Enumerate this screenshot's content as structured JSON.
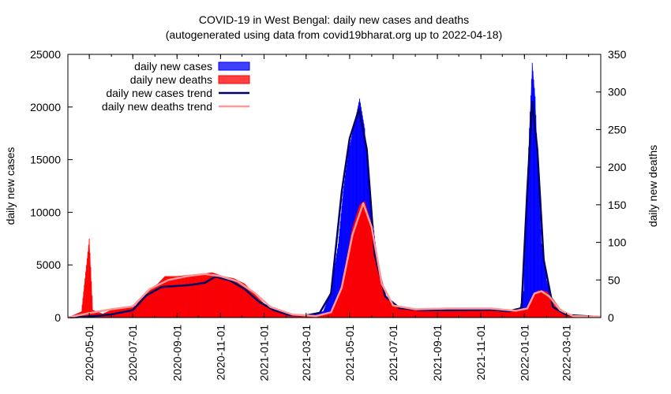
{
  "chart_data": {
    "type": "bar",
    "title": "COVID-19 in West Bengal: daily new cases and deaths",
    "subtitle": "(autogenerated using data from covid19bharat.org up to 2022-04-18)",
    "ylabel": "daily new cases",
    "y2label": "daily new deaths",
    "ylim": [
      0,
      25000
    ],
    "y2lim": [
      0,
      350
    ],
    "xlim": [
      "2020-04-01",
      "2022-04-18"
    ],
    "yticks": [
      "0",
      "5000",
      "10000",
      "15000",
      "20000",
      "25000"
    ],
    "y2ticks": [
      "0",
      "50",
      "100",
      "150",
      "200",
      "250",
      "300",
      "350"
    ],
    "xticks": [
      "2020-05-01",
      "2020-07-01",
      "2020-09-01",
      "2020-11-01",
      "2021-01-01",
      "2021-03-01",
      "2021-05-01",
      "2021-07-01",
      "2021-09-01",
      "2021-11-01",
      "2022-01-01",
      "2022-03-01"
    ],
    "legend_position": "top-left",
    "legend": [
      {
        "name": "daily new cases",
        "color": "#0000ff",
        "kind": "bar"
      },
      {
        "name": "daily new deaths",
        "color": "#ff0000",
        "kind": "bar"
      },
      {
        "name": "daily new cases trend",
        "color": "#000066",
        "kind": "line"
      },
      {
        "name": "daily new deaths trend",
        "color": "#ff9999",
        "kind": "line"
      }
    ],
    "series": [
      {
        "name": "daily new cases",
        "axis": "left",
        "color": "#0000ff",
        "points": [
          [
            "2020-04-01",
            10
          ],
          [
            "2020-04-20",
            50
          ],
          [
            "2020-05-05",
            120
          ],
          [
            "2020-05-20",
            150
          ],
          [
            "2020-06-05",
            400
          ],
          [
            "2020-06-20",
            500
          ],
          [
            "2020-07-05",
            900
          ],
          [
            "2020-07-20",
            2300
          ],
          [
            "2020-08-05",
            2900
          ],
          [
            "2020-08-20",
            3200
          ],
          [
            "2020-09-05",
            3000
          ],
          [
            "2020-09-20",
            3200
          ],
          [
            "2020-10-05",
            3400
          ],
          [
            "2020-10-20",
            4000
          ],
          [
            "2020-11-05",
            3700
          ],
          [
            "2020-11-20",
            3400
          ],
          [
            "2020-12-05",
            2800
          ],
          [
            "2020-12-20",
            1800
          ],
          [
            "2021-01-05",
            900
          ],
          [
            "2021-01-20",
            500
          ],
          [
            "2021-02-05",
            200
          ],
          [
            "2021-02-20",
            190
          ],
          [
            "2021-03-10",
            250
          ],
          [
            "2021-03-25",
            600
          ],
          [
            "2021-04-05",
            2500
          ],
          [
            "2021-04-15",
            7000
          ],
          [
            "2021-04-22",
            12000
          ],
          [
            "2021-04-30",
            16000
          ],
          [
            "2021-05-08",
            18500
          ],
          [
            "2021-05-15",
            20800
          ],
          [
            "2021-05-22",
            18000
          ],
          [
            "2021-05-30",
            11000
          ],
          [
            "2021-06-10",
            5000
          ],
          [
            "2021-06-20",
            2200
          ],
          [
            "2021-07-01",
            1100
          ],
          [
            "2021-07-20",
            800
          ],
          [
            "2021-08-10",
            650
          ],
          [
            "2021-09-01",
            700
          ],
          [
            "2021-09-20",
            750
          ],
          [
            "2021-10-10",
            700
          ],
          [
            "2021-11-01",
            800
          ],
          [
            "2021-11-20",
            700
          ],
          [
            "2021-12-10",
            600
          ],
          [
            "2021-12-25",
            700
          ],
          [
            "2021-12-31",
            2500
          ],
          [
            "2022-01-03",
            9000
          ],
          [
            "2022-01-08",
            18000
          ],
          [
            "2022-01-12",
            24200
          ],
          [
            "2022-01-16",
            21000
          ],
          [
            "2022-01-20",
            14000
          ],
          [
            "2022-01-25",
            7000
          ],
          [
            "2022-02-01",
            3500
          ],
          [
            "2022-02-10",
            1200
          ],
          [
            "2022-02-20",
            500
          ],
          [
            "2022-03-05",
            200
          ],
          [
            "2022-04-18",
            60
          ]
        ]
      },
      {
        "name": "daily new deaths",
        "axis": "right",
        "color": "#ff0000",
        "points": [
          [
            "2020-04-01",
            0
          ],
          [
            "2020-04-20",
            8
          ],
          [
            "2020-05-01",
            105
          ],
          [
            "2020-05-06",
            10
          ],
          [
            "2020-05-20",
            5
          ],
          [
            "2020-06-05",
            12
          ],
          [
            "2020-06-20",
            14
          ],
          [
            "2020-07-05",
            16
          ],
          [
            "2020-07-20",
            35
          ],
          [
            "2020-08-05",
            45
          ],
          [
            "2020-08-15",
            55
          ],
          [
            "2020-09-01",
            55
          ],
          [
            "2020-09-20",
            57
          ],
          [
            "2020-10-05",
            58
          ],
          [
            "2020-10-20",
            60
          ],
          [
            "2020-11-05",
            55
          ],
          [
            "2020-11-20",
            52
          ],
          [
            "2020-12-05",
            45
          ],
          [
            "2020-12-20",
            30
          ],
          [
            "2021-01-05",
            15
          ],
          [
            "2021-01-20",
            8
          ],
          [
            "2021-02-05",
            3
          ],
          [
            "2021-03-10",
            2
          ],
          [
            "2021-03-25",
            4
          ],
          [
            "2021-04-05",
            8
          ],
          [
            "2021-04-15",
            25
          ],
          [
            "2021-04-25",
            70
          ],
          [
            "2021-05-05",
            120
          ],
          [
            "2021-05-15",
            150
          ],
          [
            "2021-05-22",
            155
          ],
          [
            "2021-05-30",
            130
          ],
          [
            "2021-06-10",
            70
          ],
          [
            "2021-06-20",
            30
          ],
          [
            "2021-07-01",
            15
          ],
          [
            "2021-07-20",
            12
          ],
          [
            "2021-08-10",
            11
          ],
          [
            "2021-09-01",
            12
          ],
          [
            "2021-09-20",
            13
          ],
          [
            "2021-10-10",
            12
          ],
          [
            "2021-11-01",
            13
          ],
          [
            "2021-11-20",
            12
          ],
          [
            "2021-12-10",
            10
          ],
          [
            "2021-12-25",
            9
          ],
          [
            "2022-01-05",
            12
          ],
          [
            "2022-01-12",
            25
          ],
          [
            "2022-01-20",
            36
          ],
          [
            "2022-02-01",
            35
          ],
          [
            "2022-02-10",
            25
          ],
          [
            "2022-02-20",
            12
          ],
          [
            "2022-03-05",
            3
          ],
          [
            "2022-04-18",
            1
          ]
        ]
      },
      {
        "name": "daily new cases trend",
        "axis": "left",
        "color": "#000066",
        "points": [
          [
            "2020-04-01",
            10
          ],
          [
            "2020-05-01",
            100
          ],
          [
            "2020-06-01",
            300
          ],
          [
            "2020-07-01",
            700
          ],
          [
            "2020-07-20",
            2100
          ],
          [
            "2020-08-10",
            2900
          ],
          [
            "2020-09-01",
            3000
          ],
          [
            "2020-09-20",
            3100
          ],
          [
            "2020-10-10",
            3300
          ],
          [
            "2020-10-25",
            3900
          ],
          [
            "2020-11-15",
            3500
          ],
          [
            "2020-12-05",
            2700
          ],
          [
            "2020-12-25",
            1500
          ],
          [
            "2021-01-15",
            700
          ],
          [
            "2021-02-05",
            250
          ],
          [
            "2021-03-01",
            200
          ],
          [
            "2021-03-20",
            450
          ],
          [
            "2021-04-05",
            2300
          ],
          [
            "2021-04-20",
            12000
          ],
          [
            "2021-05-01",
            17000
          ],
          [
            "2021-05-14",
            19800
          ],
          [
            "2021-05-25",
            16000
          ],
          [
            "2021-06-05",
            6000
          ],
          [
            "2021-06-20",
            2000
          ],
          [
            "2021-07-10",
            900
          ],
          [
            "2021-08-10",
            700
          ],
          [
            "2021-09-15",
            700
          ],
          [
            "2021-10-15",
            720
          ],
          [
            "2021-11-15",
            750
          ],
          [
            "2021-12-10",
            600
          ],
          [
            "2021-12-28",
            900
          ],
          [
            "2022-01-05",
            12000
          ],
          [
            "2022-01-12",
            20500
          ],
          [
            "2022-01-19",
            16000
          ],
          [
            "2022-01-28",
            5500
          ],
          [
            "2022-02-10",
            1000
          ],
          [
            "2022-03-01",
            250
          ],
          [
            "2022-04-18",
            50
          ]
        ]
      },
      {
        "name": "daily new deaths trend",
        "axis": "right",
        "color": "#ff9999",
        "points": [
          [
            "2020-04-01",
            0
          ],
          [
            "2020-05-01",
            6
          ],
          [
            "2020-06-01",
            11
          ],
          [
            "2020-07-01",
            15
          ],
          [
            "2020-07-25",
            38
          ],
          [
            "2020-08-20",
            50
          ],
          [
            "2020-09-15",
            55
          ],
          [
            "2020-10-10",
            58
          ],
          [
            "2020-11-01",
            55
          ],
          [
            "2020-11-25",
            48
          ],
          [
            "2020-12-20",
            32
          ],
          [
            "2021-01-10",
            14
          ],
          [
            "2021-02-10",
            4
          ],
          [
            "2021-03-15",
            2
          ],
          [
            "2021-04-05",
            7
          ],
          [
            "2021-04-20",
            40
          ],
          [
            "2021-05-05",
            110
          ],
          [
            "2021-05-20",
            152
          ],
          [
            "2021-06-01",
            120
          ],
          [
            "2021-06-15",
            45
          ],
          [
            "2021-07-01",
            16
          ],
          [
            "2021-08-01",
            11
          ],
          [
            "2021-09-15",
            12
          ],
          [
            "2021-10-15",
            12
          ],
          [
            "2021-11-15",
            12
          ],
          [
            "2021-12-20",
            9
          ],
          [
            "2022-01-05",
            12
          ],
          [
            "2022-01-15",
            32
          ],
          [
            "2022-01-25",
            35
          ],
          [
            "2022-02-05",
            28
          ],
          [
            "2022-02-20",
            10
          ],
          [
            "2022-03-10",
            2
          ],
          [
            "2022-04-18",
            1
          ]
        ]
      }
    ]
  }
}
